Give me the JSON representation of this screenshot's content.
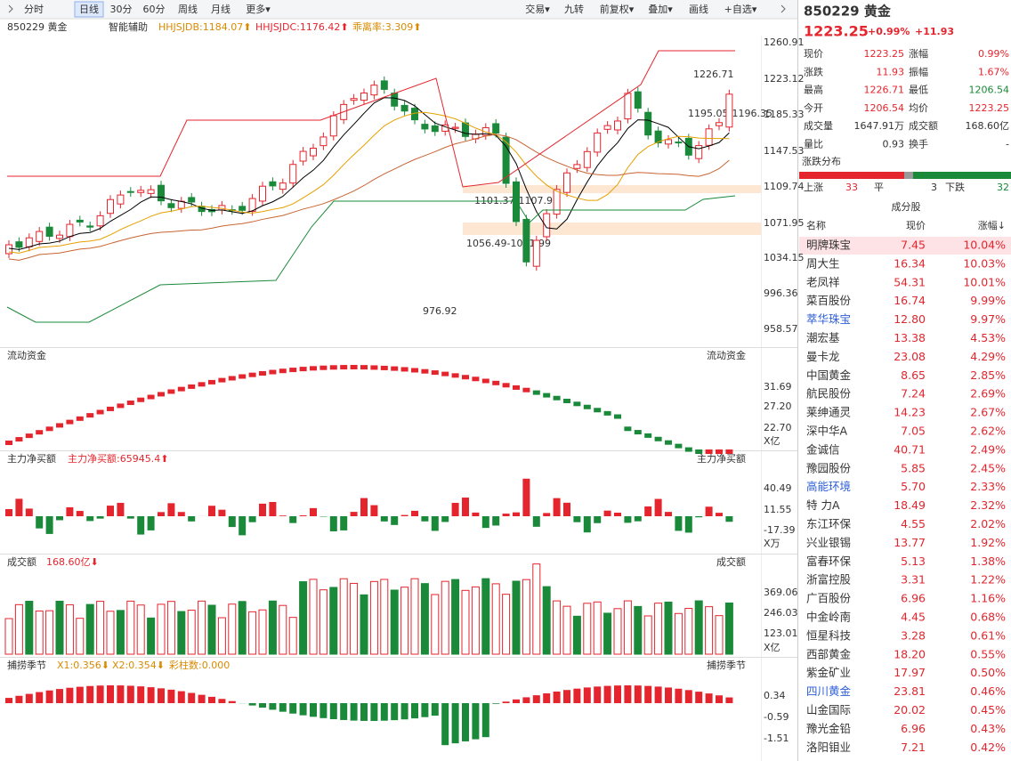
{
  "toolbar": {
    "left": [
      "分时",
      "日线",
      "30分",
      "60分",
      "周线",
      "月线",
      "更多▾"
    ],
    "right": [
      "交易▾",
      "九转",
      "前复权▾",
      "叠加▾",
      "画线",
      "+自选▾"
    ]
  },
  "chart": {
    "title": "850229 黄金",
    "assist": "智能辅助",
    "indicators": [
      "HHJSJDB:1184.07⬆",
      "HHJSJDC:1176.42⬆",
      "乖离率:3.309⬆"
    ],
    "price_ticks": [
      "1260.91",
      "1223.12",
      "1185.33",
      "1147.53",
      "1109.74",
      "1071.95",
      "1034.15",
      "996.36",
      "958.57"
    ],
    "annotations": [
      "1226.71",
      "1195.05-1196.35",
      "1101.37-1107.95",
      "1056.49-1071.99",
      "976.92"
    ]
  },
  "panels": [
    {
      "title": "流动资金",
      "right_title": "流动资金",
      "info": [],
      "ticks": [
        "31.69",
        "27.20",
        "22.70",
        "X亿"
      ]
    },
    {
      "title": "主力净买额",
      "right_title": "主力净买额",
      "info": [
        "主力净买额:65945.4⬆"
      ],
      "ticks": [
        "40.49",
        "11.55",
        "-17.39",
        "X万"
      ]
    },
    {
      "title": "成交额",
      "right_title": "成交额",
      "info": [
        "168.60亿⬇"
      ],
      "ticks": [
        "369.06",
        "246.03",
        "123.01",
        "X亿"
      ]
    },
    {
      "title": "捕捞季节",
      "right_title": "捕捞季节",
      "info": [
        "X1:0.356⬇",
        "X2:0.354⬇",
        "彩柱数:0.000"
      ],
      "ticks": [
        "0.34",
        "-0.59",
        "-1.51"
      ]
    }
  ],
  "quote": {
    "title": "850229 黄金",
    "price": "1223.25",
    "change_pct": "+0.99%",
    "change": "+11.93",
    "rows": [
      [
        "现价",
        "1223.25",
        "涨幅",
        "0.99%"
      ],
      [
        "涨跌",
        "11.93",
        "振幅",
        "1.67%"
      ],
      [
        "最高",
        "1226.71",
        "最低",
        "1206.54"
      ],
      [
        "今开",
        "1206.54",
        "均价",
        "1223.25"
      ],
      [
        "成交量",
        "1647.91万",
        "成交额",
        "168.60亿"
      ],
      [
        "量比",
        "0.93",
        "换手",
        "-"
      ]
    ]
  },
  "distribution": {
    "title": "涨跌分布",
    "up_label": "上涨",
    "up": "33",
    "flat_label": "平",
    "flat": "3",
    "down_label": "下跌",
    "down": "32"
  },
  "constituents": {
    "title": "成分股",
    "header": [
      "名称",
      "现价",
      "涨幅↓"
    ],
    "rows": [
      [
        "明牌珠宝",
        "7.45",
        "10.04%"
      ],
      [
        "周大生",
        "16.34",
        "10.03%"
      ],
      [
        "老凤祥",
        "54.31",
        "10.01%"
      ],
      [
        "菜百股份",
        "16.74",
        "9.99%"
      ],
      [
        "萃华珠宝",
        "12.80",
        "9.97%"
      ],
      [
        "潮宏基",
        "13.38",
        "4.53%"
      ],
      [
        "曼卡龙",
        "23.08",
        "4.29%"
      ],
      [
        "中国黄金",
        "8.65",
        "2.85%"
      ],
      [
        "航民股份",
        "7.24",
        "2.69%"
      ],
      [
        "莱绅通灵",
        "14.23",
        "2.67%"
      ],
      [
        "深中华A",
        "7.05",
        "2.62%"
      ],
      [
        "金诚信",
        "40.71",
        "2.49%"
      ],
      [
        "豫园股份",
        "5.85",
        "2.45%"
      ],
      [
        "高能环境",
        "5.70",
        "2.33%"
      ],
      [
        "特 力A",
        "18.49",
        "2.32%"
      ],
      [
        "东江环保",
        "4.55",
        "2.02%"
      ],
      [
        "兴业银锡",
        "13.77",
        "1.92%"
      ],
      [
        "富春环保",
        "5.13",
        "1.38%"
      ],
      [
        "浙富控股",
        "3.31",
        "1.22%"
      ],
      [
        "广百股份",
        "6.96",
        "1.16%"
      ],
      [
        "中金岭南",
        "4.45",
        "0.68%"
      ],
      [
        "恒星科技",
        "3.28",
        "0.61%"
      ],
      [
        "西部黄金",
        "18.20",
        "0.55%"
      ],
      [
        "紫金矿业",
        "17.97",
        "0.50%"
      ],
      [
        "四川黄金",
        "23.81",
        "0.46%"
      ],
      [
        "山金国际",
        "20.02",
        "0.45%"
      ],
      [
        "豫光金铅",
        "6.96",
        "0.43%"
      ],
      [
        "洛阳钼业",
        "7.21",
        "0.42%"
      ]
    ]
  }
}
